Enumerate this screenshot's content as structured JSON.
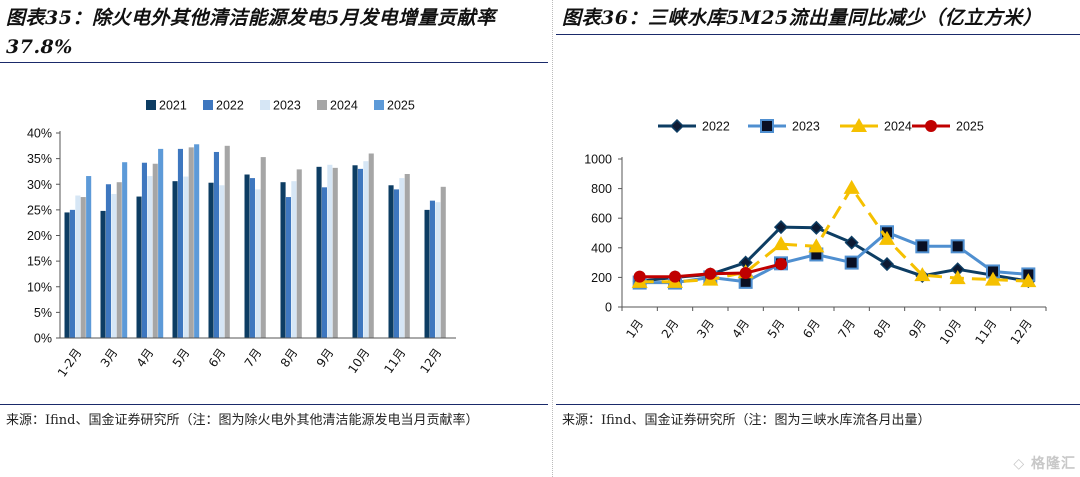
{
  "left": {
    "title": "图表35：除火电外其他清洁能源发电5月发电增量贡献率37.8%",
    "source": "来源：Ifind、国金证券研究所（注：图为除火电外其他清洁能源发电当月贡献率）"
  },
  "right": {
    "title": "图表36：三峡水库5M25流出量同比减少（亿立方米）",
    "source": "来源：Ifind、国金证券研究所（注：图为三峡水库流各月出量）"
  },
  "watermark": "格隆汇",
  "chart_data": [
    {
      "type": "bar",
      "categories": [
        "1-2月",
        "3月",
        "4月",
        "5月",
        "6月",
        "7月",
        "8月",
        "9月",
        "10月",
        "11月",
        "12月"
      ],
      "ylim": [
        0,
        0.4
      ],
      "yticks": [
        "0%",
        "5%",
        "10%",
        "15%",
        "20%",
        "25%",
        "30%",
        "35%",
        "40%"
      ],
      "legend_position": "top",
      "grid": false,
      "series": [
        {
          "name": "2021",
          "color": "#0d3d63",
          "values": [
            0.245,
            0.248,
            0.276,
            0.306,
            0.303,
            0.319,
            0.304,
            0.334,
            0.337,
            0.298,
            0.25
          ]
        },
        {
          "name": "2022",
          "color": "#3e77bf",
          "values": [
            0.25,
            0.3,
            0.342,
            0.369,
            0.363,
            0.312,
            0.275,
            0.294,
            0.33,
            0.29,
            0.268
          ]
        },
        {
          "name": "2023",
          "color": "#d6e6f5",
          "values": [
            0.278,
            0.281,
            0.316,
            0.315,
            0.298,
            0.29,
            0.306,
            0.338,
            0.345,
            0.312,
            0.265
          ]
        },
        {
          "name": "2024",
          "color": "#a6a6a6",
          "values": [
            0.275,
            0.304,
            0.34,
            0.372,
            0.375,
            0.353,
            0.329,
            0.332,
            0.36,
            0.32,
            0.295
          ]
        },
        {
          "name": "2025",
          "color": "#5d9ad8",
          "values": [
            0.316,
            0.343,
            0.369,
            0.378,
            null,
            null,
            null,
            null,
            null,
            null,
            null
          ]
        }
      ]
    },
    {
      "type": "line",
      "categories": [
        "1月",
        "2月",
        "3月",
        "4月",
        "5月",
        "6月",
        "7月",
        "8月",
        "9月",
        "10月",
        "11月",
        "12月"
      ],
      "ylim": [
        0,
        1000
      ],
      "yticks": [
        "0",
        "200",
        "400",
        "600",
        "800",
        "1000"
      ],
      "legend_position": "top",
      "grid": false,
      "series": [
        {
          "name": "2022",
          "color": "#0d3d63",
          "marker": "diamond",
          "values": [
            175,
            200,
            220,
            300,
            540,
            535,
            435,
            290,
            210,
            255,
            215,
            175
          ]
        },
        {
          "name": "2023",
          "color": "#4f8fd0",
          "marker": "square",
          "values": [
            165,
            165,
            200,
            170,
            295,
            355,
            300,
            505,
            410,
            410,
            240,
            220
          ]
        },
        {
          "name": "2024",
          "color": "#f5c000",
          "marker": "triangle",
          "dashed": true,
          "values": [
            170,
            170,
            185,
            235,
            425,
            410,
            805,
            460,
            215,
            195,
            185,
            175
          ]
        },
        {
          "name": "2025",
          "color": "#c00000",
          "marker": "circle",
          "values": [
            205,
            205,
            225,
            230,
            290,
            null,
            null,
            null,
            null,
            null,
            null,
            null
          ]
        }
      ]
    }
  ]
}
